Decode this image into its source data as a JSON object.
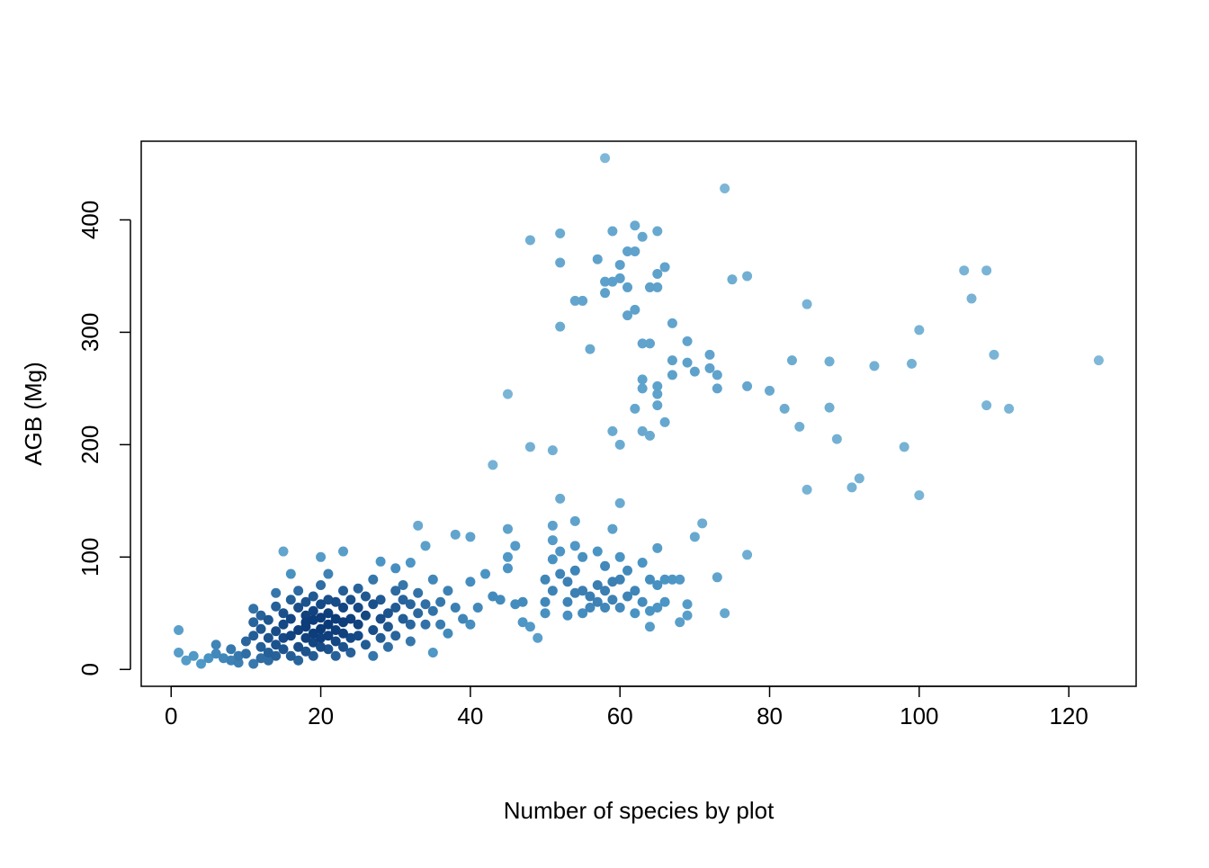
{
  "chart_data": {
    "type": "scatter",
    "title": "",
    "xlabel": "Number of species by plot",
    "ylabel": "AGB (Mg)",
    "xlim": [
      -4,
      129
    ],
    "ylim": [
      -15,
      470
    ],
    "xticks": [
      0,
      20,
      40,
      60,
      80,
      100,
      120
    ],
    "yticks": [
      0,
      100,
      200,
      300,
      400
    ],
    "xtick_labels": [
      "0",
      "20",
      "40",
      "60",
      "80",
      "100",
      "120"
    ],
    "ytick_labels": [
      "0",
      "100",
      "200",
      "300",
      "400"
    ],
    "grid": false,
    "legend": "none",
    "colors": {
      "light": "#7fb8d8",
      "mid": "#4a94c4",
      "dark": "#0b3a78"
    },
    "points": [
      [
        1,
        35
      ],
      [
        1,
        15
      ],
      [
        2,
        8
      ],
      [
        3,
        12
      ],
      [
        4,
        5
      ],
      [
        5,
        10
      ],
      [
        6,
        22
      ],
      [
        6,
        14
      ],
      [
        7,
        10
      ],
      [
        8,
        8
      ],
      [
        8,
        18
      ],
      [
        9,
        12
      ],
      [
        9,
        6
      ],
      [
        10,
        25
      ],
      [
        10,
        14
      ],
      [
        11,
        5
      ],
      [
        11,
        30
      ],
      [
        11,
        42
      ],
      [
        11,
        54
      ],
      [
        12,
        20
      ],
      [
        12,
        36
      ],
      [
        12,
        10
      ],
      [
        12,
        48
      ],
      [
        13,
        28
      ],
      [
        13,
        15
      ],
      [
        13,
        44
      ],
      [
        13,
        8
      ],
      [
        14,
        22
      ],
      [
        14,
        34
      ],
      [
        14,
        56
      ],
      [
        14,
        12
      ],
      [
        14,
        68
      ],
      [
        15,
        105
      ],
      [
        15,
        40
      ],
      [
        15,
        28
      ],
      [
        15,
        18
      ],
      [
        15,
        50
      ],
      [
        16,
        85
      ],
      [
        16,
        62
      ],
      [
        16,
        30
      ],
      [
        16,
        12
      ],
      [
        16,
        45
      ],
      [
        17,
        20
      ],
      [
        17,
        35
      ],
      [
        17,
        55
      ],
      [
        17,
        8
      ],
      [
        17,
        70
      ],
      [
        18,
        28
      ],
      [
        18,
        42
      ],
      [
        18,
        60
      ],
      [
        18,
        16
      ],
      [
        18,
        38
      ],
      [
        18,
        48
      ],
      [
        19,
        32
      ],
      [
        19,
        24
      ],
      [
        19,
        52
      ],
      [
        19,
        65
      ],
      [
        19,
        12
      ],
      [
        19,
        44
      ],
      [
        20,
        36
      ],
      [
        20,
        28
      ],
      [
        20,
        58
      ],
      [
        20,
        20
      ],
      [
        20,
        75
      ],
      [
        20,
        100
      ],
      [
        20,
        46
      ],
      [
        21,
        40
      ],
      [
        21,
        30
      ],
      [
        21,
        62
      ],
      [
        21,
        18
      ],
      [
        21,
        50
      ],
      [
        21,
        85
      ],
      [
        22,
        35
      ],
      [
        22,
        25
      ],
      [
        22,
        45
      ],
      [
        22,
        60
      ],
      [
        22,
        12
      ],
      [
        23,
        105
      ],
      [
        23,
        32
      ],
      [
        23,
        55
      ],
      [
        23,
        42
      ],
      [
        23,
        20
      ],
      [
        23,
        70
      ],
      [
        24,
        45
      ],
      [
        24,
        28
      ],
      [
        24,
        62
      ],
      [
        24,
        15
      ],
      [
        25,
        40
      ],
      [
        25,
        55
      ],
      [
        25,
        30
      ],
      [
        25,
        72
      ],
      [
        26,
        48
      ],
      [
        26,
        22
      ],
      [
        26,
        65
      ],
      [
        27,
        35
      ],
      [
        27,
        58
      ],
      [
        27,
        80
      ],
      [
        27,
        12
      ],
      [
        28,
        45
      ],
      [
        28,
        28
      ],
      [
        28,
        96
      ],
      [
        28,
        62
      ],
      [
        29,
        50
      ],
      [
        29,
        38
      ],
      [
        29,
        20
      ],
      [
        30,
        70
      ],
      [
        30,
        55
      ],
      [
        30,
        90
      ],
      [
        30,
        30
      ],
      [
        31,
        45
      ],
      [
        31,
        62
      ],
      [
        31,
        75
      ],
      [
        32,
        40
      ],
      [
        32,
        25
      ],
      [
        32,
        95
      ],
      [
        32,
        58
      ],
      [
        33,
        50
      ],
      [
        33,
        128
      ],
      [
        33,
        68
      ],
      [
        34,
        58
      ],
      [
        34,
        110
      ],
      [
        34,
        40
      ],
      [
        35,
        52
      ],
      [
        35,
        15
      ],
      [
        35,
        80
      ],
      [
        36,
        60
      ],
      [
        36,
        40
      ],
      [
        37,
        70
      ],
      [
        37,
        32
      ],
      [
        38,
        120
      ],
      [
        38,
        55
      ],
      [
        39,
        45
      ],
      [
        40,
        118
      ],
      [
        40,
        78
      ],
      [
        40,
        40
      ],
      [
        41,
        55
      ],
      [
        42,
        85
      ],
      [
        43,
        65
      ],
      [
        43,
        182
      ],
      [
        44,
        62
      ],
      [
        45,
        245
      ],
      [
        45,
        125
      ],
      [
        45,
        100
      ],
      [
        45,
        90
      ],
      [
        46,
        110
      ],
      [
        46,
        58
      ],
      [
        47,
        42
      ],
      [
        47,
        60
      ],
      [
        48,
        382
      ],
      [
        48,
        198
      ],
      [
        48,
        38
      ],
      [
        49,
        28
      ],
      [
        50,
        80
      ],
      [
        50,
        60
      ],
      [
        50,
        50
      ],
      [
        51,
        195
      ],
      [
        51,
        128
      ],
      [
        51,
        115
      ],
      [
        51,
        98
      ],
      [
        51,
        70
      ],
      [
        52,
        388
      ],
      [
        52,
        362
      ],
      [
        52,
        305
      ],
      [
        52,
        152
      ],
      [
        52,
        105
      ],
      [
        52,
        85
      ],
      [
        53,
        78
      ],
      [
        53,
        60
      ],
      [
        53,
        48
      ],
      [
        54,
        328
      ],
      [
        54,
        132
      ],
      [
        54,
        110
      ],
      [
        54,
        88
      ],
      [
        54,
        68
      ],
      [
        55,
        328
      ],
      [
        55,
        100
      ],
      [
        55,
        70
      ],
      [
        55,
        50
      ],
      [
        56,
        285
      ],
      [
        56,
        65
      ],
      [
        56,
        55
      ],
      [
        57,
        365
      ],
      [
        57,
        105
      ],
      [
        57,
        75
      ],
      [
        57,
        60
      ],
      [
        58,
        455
      ],
      [
        58,
        345
      ],
      [
        58,
        335
      ],
      [
        58,
        92
      ],
      [
        58,
        70
      ],
      [
        58,
        55
      ],
      [
        59,
        390
      ],
      [
        59,
        345
      ],
      [
        59,
        212
      ],
      [
        59,
        125
      ],
      [
        59,
        78
      ],
      [
        59,
        62
      ],
      [
        60,
        360
      ],
      [
        60,
        348
      ],
      [
        60,
        200
      ],
      [
        60,
        148
      ],
      [
        60,
        100
      ],
      [
        60,
        80
      ],
      [
        60,
        55
      ],
      [
        61,
        372
      ],
      [
        61,
        340
      ],
      [
        61,
        315
      ],
      [
        61,
        88
      ],
      [
        61,
        65
      ],
      [
        62,
        395
      ],
      [
        62,
        372
      ],
      [
        62,
        320
      ],
      [
        62,
        232
      ],
      [
        62,
        70
      ],
      [
        62,
        50
      ],
      [
        63,
        385
      ],
      [
        63,
        290
      ],
      [
        63,
        258
      ],
      [
        63,
        250
      ],
      [
        63,
        212
      ],
      [
        63,
        95
      ],
      [
        63,
        60
      ],
      [
        64,
        340
      ],
      [
        64,
        290
      ],
      [
        64,
        208
      ],
      [
        64,
        80
      ],
      [
        64,
        52
      ],
      [
        64,
        38
      ],
      [
        65,
        390
      ],
      [
        65,
        352
      ],
      [
        65,
        340
      ],
      [
        65,
        252
      ],
      [
        65,
        245
      ],
      [
        65,
        235
      ],
      [
        65,
        108
      ],
      [
        65,
        75
      ],
      [
        65,
        55
      ],
      [
        66,
        358
      ],
      [
        66,
        220
      ],
      [
        66,
        80
      ],
      [
        66,
        60
      ],
      [
        67,
        308
      ],
      [
        67,
        275
      ],
      [
        67,
        262
      ],
      [
        67,
        80
      ],
      [
        68,
        42
      ],
      [
        68,
        80
      ],
      [
        69,
        292
      ],
      [
        69,
        273
      ],
      [
        69,
        58
      ],
      [
        69,
        48
      ],
      [
        70,
        265
      ],
      [
        70,
        118
      ],
      [
        71,
        130
      ],
      [
        72,
        280
      ],
      [
        72,
        268
      ],
      [
        73,
        262
      ],
      [
        73,
        250
      ],
      [
        73,
        82
      ],
      [
        74,
        428
      ],
      [
        74,
        50
      ],
      [
        75,
        347
      ],
      [
        77,
        350
      ],
      [
        77,
        252
      ],
      [
        77,
        102
      ],
      [
        80,
        248
      ],
      [
        82,
        232
      ],
      [
        83,
        275
      ],
      [
        84,
        216
      ],
      [
        85,
        325
      ],
      [
        85,
        160
      ],
      [
        88,
        274
      ],
      [
        88,
        233
      ],
      [
        89,
        205
      ],
      [
        91,
        162
      ],
      [
        92,
        170
      ],
      [
        94,
        270
      ],
      [
        98,
        198
      ],
      [
        99,
        272
      ],
      [
        100,
        302
      ],
      [
        100,
        155
      ],
      [
        106,
        355
      ],
      [
        107,
        330
      ],
      [
        109,
        355
      ],
      [
        109,
        235
      ],
      [
        110,
        280
      ],
      [
        112,
        232
      ],
      [
        124,
        275
      ]
    ]
  }
}
